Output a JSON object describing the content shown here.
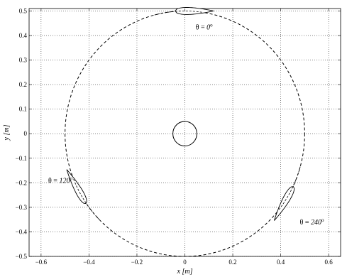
{
  "chart_data": {
    "type": "line",
    "xlabel_var": "x",
    "xlabel_unit": "[m]",
    "ylabel_var": "y",
    "ylabel_unit": "[m]",
    "xlim": [
      -0.65,
      0.65
    ],
    "ylim": [
      -0.5,
      0.51
    ],
    "x_ticks": [
      -0.6,
      -0.4,
      -0.2,
      0,
      0.2,
      0.4,
      0.6
    ],
    "x_tick_labels": [
      "−0.6",
      "−0.4",
      "−0.2",
      "0",
      "0.2",
      "0.4",
      "0.6"
    ],
    "y_ticks": [
      -0.5,
      -0.4,
      -0.3,
      -0.2,
      -0.1,
      0,
      0.1,
      0.2,
      0.3,
      0.4,
      0.5
    ],
    "y_tick_labels": [
      "−0.5",
      "−0.4",
      "−0.3",
      "−0.2",
      "−0.1",
      "0",
      "0.1",
      "0.2",
      "0.3",
      "0.4",
      "0.5"
    ],
    "grid": true,
    "rotor_orbit": {
      "center": [
        0,
        0
      ],
      "radius": 0.5,
      "style": "dashed"
    },
    "shaft": {
      "center": [
        0,
        0
      ],
      "radius": 0.05
    },
    "blades": [
      {
        "theta_deg": 0,
        "label": "θ = ",
        "angle_text": "0",
        "degree_sign": "o",
        "label_pos": [
          0.045,
          0.425
        ]
      },
      {
        "theta_deg": 120,
        "label": "θ = ",
        "angle_text": "120",
        "degree_sign": "o",
        "label_pos": [
          -0.57,
          -0.2
        ]
      },
      {
        "theta_deg": 240,
        "label": "θ = ",
        "angle_text": "240",
        "degree_sign": "o",
        "label_pos": [
          0.48,
          -0.37
        ]
      }
    ],
    "blade_chord": 0.16,
    "blade_max_thickness_ratio": 0.18
  }
}
